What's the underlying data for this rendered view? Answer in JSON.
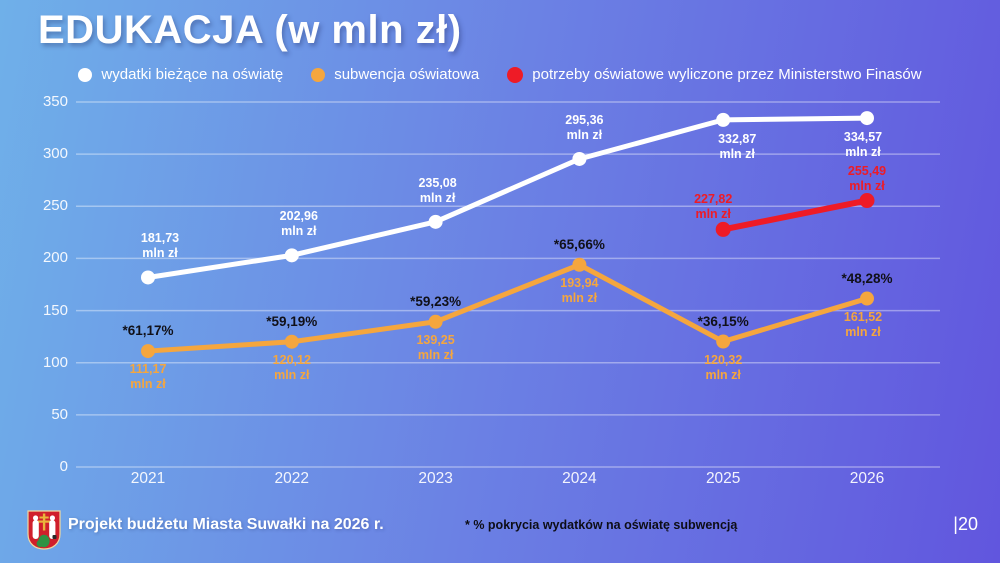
{
  "title": "EDUKACJA (w mln zł)",
  "legend": [
    {
      "label": "wydatki bieżące na oświatę",
      "color": "#ffffff"
    },
    {
      "label": "subwencja oświatowa",
      "color": "#f5a63e"
    },
    {
      "label": "potrzeby oświatowe wyliczone przez Ministerstwo Finasów",
      "color": "#ee1b26"
    }
  ],
  "chart_data": {
    "type": "line",
    "categories": [
      "2021",
      "2022",
      "2023",
      "2024",
      "2025",
      "2026"
    ],
    "unit": "mln zł",
    "ylim": [
      0,
      350
    ],
    "yticks": [
      0,
      50,
      100,
      150,
      200,
      250,
      300,
      350
    ],
    "grid": true,
    "legend_position": "top",
    "series": [
      {
        "name": "wydatki bieżące na oświatę",
        "color": "#ffffff",
        "values": [
          181.73,
          202.96,
          235.08,
          295.36,
          332.87,
          334.57
        ],
        "labels": [
          "181,73",
          "202,96",
          "235,08",
          "295,36",
          "332,87",
          "334,57"
        ]
      },
      {
        "name": "subwencja oświatowa",
        "color": "#f5a63e",
        "values": [
          111.17,
          120.12,
          139.25,
          193.94,
          120.32,
          161.52
        ],
        "labels": [
          "111,17",
          "120,12",
          "139,25",
          "193,94",
          "120,32",
          "161,52"
        ],
        "pct_labels": [
          "*61,17%",
          "*59,19%",
          "*59,23%",
          "*65,66%",
          "*36,15%",
          "*48,28%"
        ]
      },
      {
        "name": "potrzeby oświatowe wyliczone przez Ministerstwo Finasów",
        "color": "#ee1b26",
        "values": [
          null,
          null,
          null,
          null,
          227.82,
          255.49
        ],
        "labels": [
          null,
          null,
          null,
          null,
          "227,82",
          "255,49"
        ]
      }
    ]
  },
  "footer": {
    "logo": "suwalki-coat-of-arms",
    "text": "Projekt budżetu Miasta Suwałki na 2026 r.",
    "footnote": "* % pokrycia wydatków na oświatę subwencją",
    "page": "|20"
  }
}
